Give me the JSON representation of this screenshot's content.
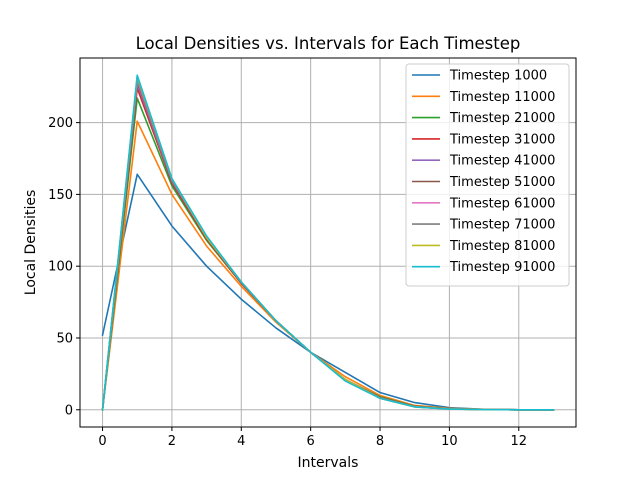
{
  "chart_data": {
    "type": "line",
    "title": "Local Densities vs. Intervals for Each Timestep",
    "xlabel": "Intervals",
    "ylabel": "Local Densities",
    "xlim": [
      -0.65,
      13.65
    ],
    "ylim": [
      -12,
      245
    ],
    "xticks": [
      0,
      2,
      4,
      6,
      8,
      10,
      12
    ],
    "yticks": [
      0,
      50,
      100,
      150,
      200
    ],
    "grid": true,
    "legend_position": "upper right",
    "x": [
      0,
      1,
      2,
      3,
      4,
      5,
      6,
      7,
      8,
      9,
      10,
      11,
      12,
      13
    ],
    "series": [
      {
        "name": "Timestep 1000",
        "color": "#1f77b4",
        "values": [
          52,
          164,
          128,
          100,
          77,
          57,
          40,
          26,
          12,
          5,
          1.5,
          0.3,
          0,
          0
        ]
      },
      {
        "name": "Timestep 11000",
        "color": "#ff7f0e",
        "values": [
          0,
          201,
          150,
          114,
          86,
          61,
          40,
          23,
          10,
          3,
          1,
          0.2,
          0,
          0
        ]
      },
      {
        "name": "Timestep 21000",
        "color": "#2ca02c",
        "values": [
          0,
          217,
          156,
          118,
          88,
          62,
          40,
          21,
          9,
          2.5,
          0.8,
          0.1,
          0,
          0
        ]
      },
      {
        "name": "Timestep 31000",
        "color": "#d62728",
        "values": [
          0,
          224,
          158,
          119,
          88,
          62,
          40,
          21,
          8.5,
          2.3,
          0.7,
          0.1,
          0,
          0
        ]
      },
      {
        "name": "Timestep 41000",
        "color": "#9467bd",
        "values": [
          0,
          227,
          159,
          120,
          88.5,
          62,
          40,
          21,
          8.3,
          2.2,
          0.6,
          0.1,
          0,
          0
        ]
      },
      {
        "name": "Timestep 51000",
        "color": "#8c564b",
        "values": [
          0,
          229,
          160,
          120,
          88.5,
          62,
          40,
          21,
          8.2,
          2.1,
          0.6,
          0.1,
          0,
          0
        ]
      },
      {
        "name": "Timestep 61000",
        "color": "#e377c2",
        "values": [
          0,
          230,
          160,
          120,
          89,
          62,
          40,
          21,
          8.1,
          2.1,
          0.6,
          0.1,
          0,
          0
        ]
      },
      {
        "name": "Timestep 71000",
        "color": "#7f7f7f",
        "values": [
          0,
          231,
          160,
          120,
          89,
          62,
          40,
          21,
          8,
          2,
          0.6,
          0.1,
          0,
          0
        ]
      },
      {
        "name": "Timestep 81000",
        "color": "#bcbd22",
        "values": [
          0,
          232,
          161,
          120,
          89,
          62,
          40,
          21,
          8,
          2,
          0.6,
          0.1,
          0,
          0
        ]
      },
      {
        "name": "Timestep 91000",
        "color": "#17becf",
        "values": [
          0,
          233,
          161,
          121,
          89,
          62,
          40,
          20,
          8,
          2,
          0.5,
          0.1,
          0,
          0
        ]
      }
    ]
  }
}
